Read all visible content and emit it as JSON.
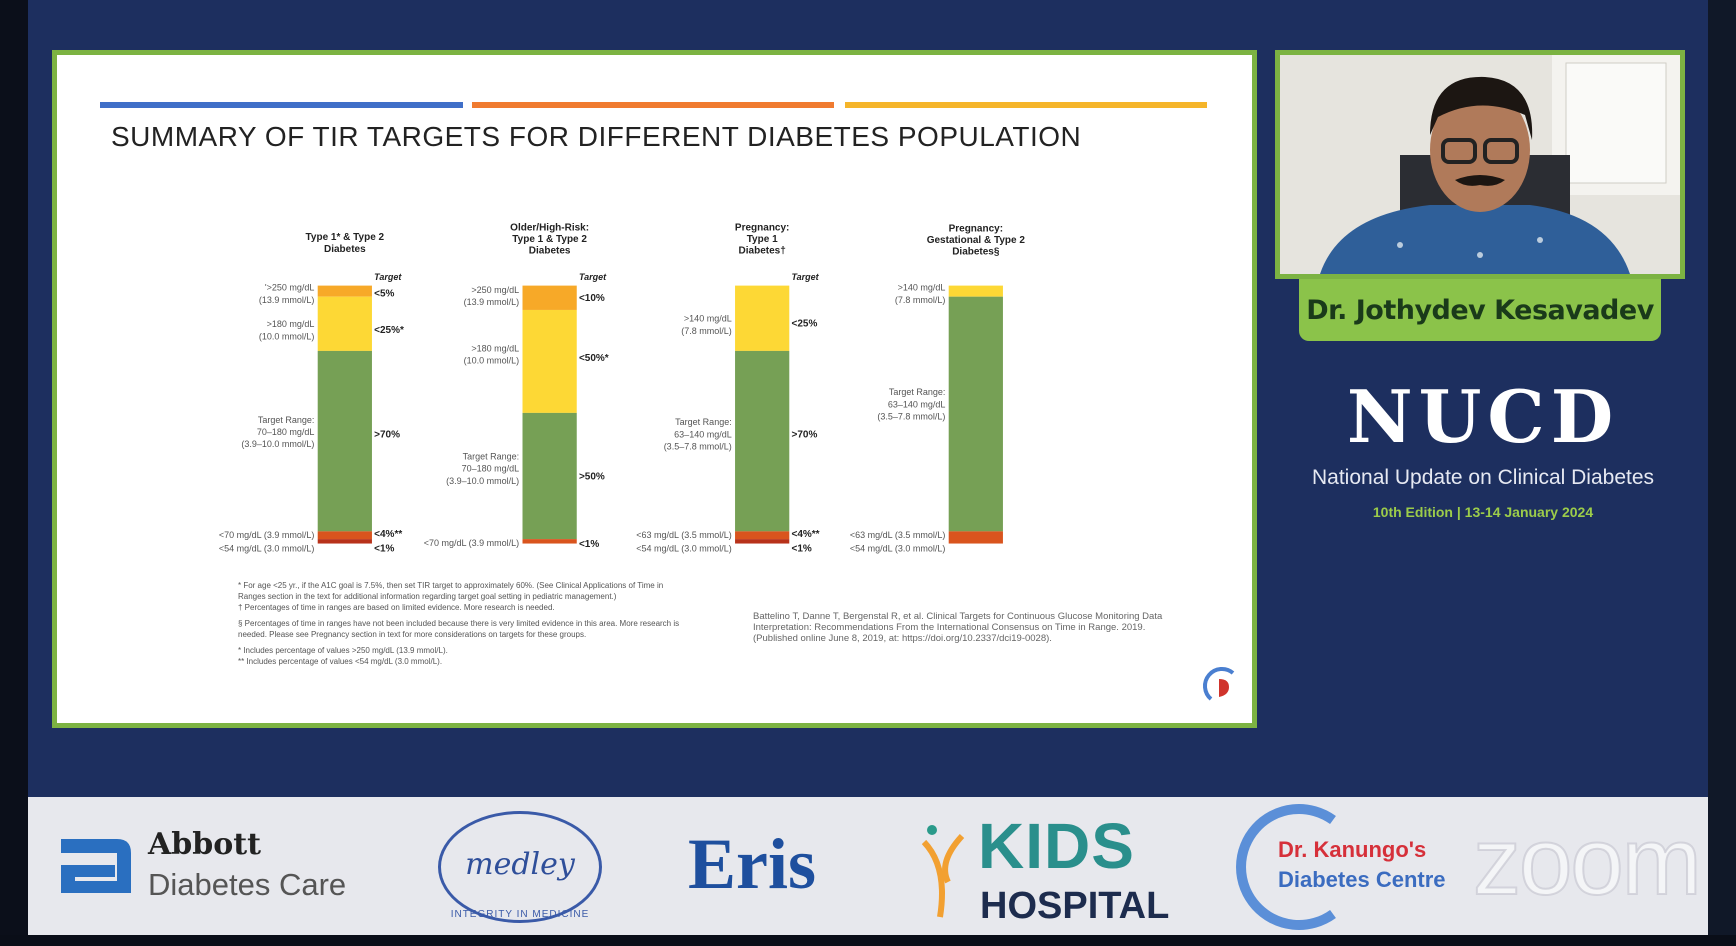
{
  "slide": {
    "title": "SUMMARY OF TIR TARGETS FOR DIFFERENT DIABETES POPULATION",
    "accent_colors": [
      "#3f6fc8",
      "#f07b30",
      "#f5b52a"
    ],
    "frame_color": "#7cb342",
    "footnotes": [
      "* For age <25 yr., if the A1C goal is 7.5%, then set TIR target to approximately 60%. (See Clinical Applications of Time in Ranges section in the text for additional information regarding target goal setting in pediatric management.)",
      "† Percentages of time in ranges are based on limited evidence. More research is needed.",
      "§ Percentages of time in ranges have not been included because there is very limited evidence in this area. More research is needed. Please see Pregnancy section in text for more considerations on targets for these groups.",
      "* Includes percentage of values >250 mg/dL (13.9 mmol/L).",
      "** Includes percentage of values <54 mg/dL (3.0 mmol/L)."
    ],
    "citation": "Battelino T, Danne T, Bergenstal R, et al. Clinical Targets for Continuous Glucose Monitoring Data Interpretation: Recommendations From the International Consensus on Time in Range. 2019. (Published online June 8, 2019, at: https://doi.org/10.2337/dci19-0028)."
  },
  "chart_data": {
    "type": "bar",
    "target_header": "Target",
    "colors": {
      "very_high": "#f7a928",
      "high": "#fdd835",
      "in_range": "#76a055",
      "low": "#d9541e",
      "very_low": "#b8321a"
    },
    "panels": [
      {
        "title": [
          "Type 1* & Type 2",
          "Diabetes"
        ],
        "ranges": [
          [
            "'>250 mg/dL",
            "(13.9 mmol/L)"
          ],
          [
            ">180 mg/dL",
            "(10.0 mmol/L)"
          ],
          [
            "Target Range:",
            "70–180 mg/dL",
            "(3.9–10.0 mmol/L)"
          ],
          [
            "<70 mg/dL (3.9 mmol/L)"
          ],
          [
            "<54 mg/dL (3.0 mmol/L)"
          ]
        ],
        "targets": [
          "<5%",
          "<25%*",
          ">70%",
          "<4%**",
          "<1%"
        ]
      },
      {
        "title": [
          "Older/High-Risk:",
          "Type 1 & Type 2",
          "Diabetes"
        ],
        "ranges": [
          [
            ">250 mg/dL",
            "(13.9 mmol/L)"
          ],
          [
            ">180 mg/dL",
            "(10.0 mmol/L)"
          ],
          [
            "Target Range:",
            "70–180 mg/dL",
            "(3.9–10.0 mmol/L)"
          ],
          [
            "<70 mg/dL (3.9 mmol/L)"
          ]
        ],
        "targets": [
          "<10%",
          "<50%*",
          ">50%",
          "<1%"
        ]
      },
      {
        "title": [
          "Pregnancy:",
          "Type 1",
          "Diabetes†"
        ],
        "ranges": [
          [
            ">140 mg/dL",
            "(7.8 mmol/L)"
          ],
          [
            "Target Range:",
            "63–140 mg/dL",
            "(3.5–7.8 mmol/L)"
          ],
          [
            "<63 mg/dL (3.5 mmol/L)"
          ],
          [
            "<54 mg/dL (3.0 mmol/L)"
          ]
        ],
        "targets": [
          "<25%",
          ">70%",
          "<4%**",
          "<1%"
        ]
      },
      {
        "title": [
          "Pregnancy:",
          "Gestational & Type 2",
          "Diabetes§"
        ],
        "ranges": [
          [
            ">140 mg/dL",
            "(7.8 mmol/L)"
          ],
          [
            "Target Range:",
            "63–140 mg/dL",
            "(3.5–7.8 mmol/L)"
          ],
          [
            "<63 mg/dL (3.5 mmol/L)"
          ],
          [
            "<54 mg/dL (3.0 mmol/L)"
          ]
        ],
        "targets": []
      }
    ]
  },
  "speaker": {
    "name": "Dr. Jothydev Kesavadev"
  },
  "event": {
    "acronym": "NUCD",
    "full_name": "National Update on Clinical Diabetes",
    "edition": "10th Edition | 13-14 January 2024"
  },
  "sponsors": [
    {
      "name": "Abbott",
      "sub": "Diabetes Care"
    },
    {
      "name": "medley",
      "sub": "INTEGRITY IN MEDICINE"
    },
    {
      "name": "Eris"
    },
    {
      "name": "KIDS",
      "sub": "HOSPITAL"
    },
    {
      "name": "Dr. Kanungo's",
      "sub": "Diabetes Centre"
    }
  ],
  "watermark": "zoom"
}
